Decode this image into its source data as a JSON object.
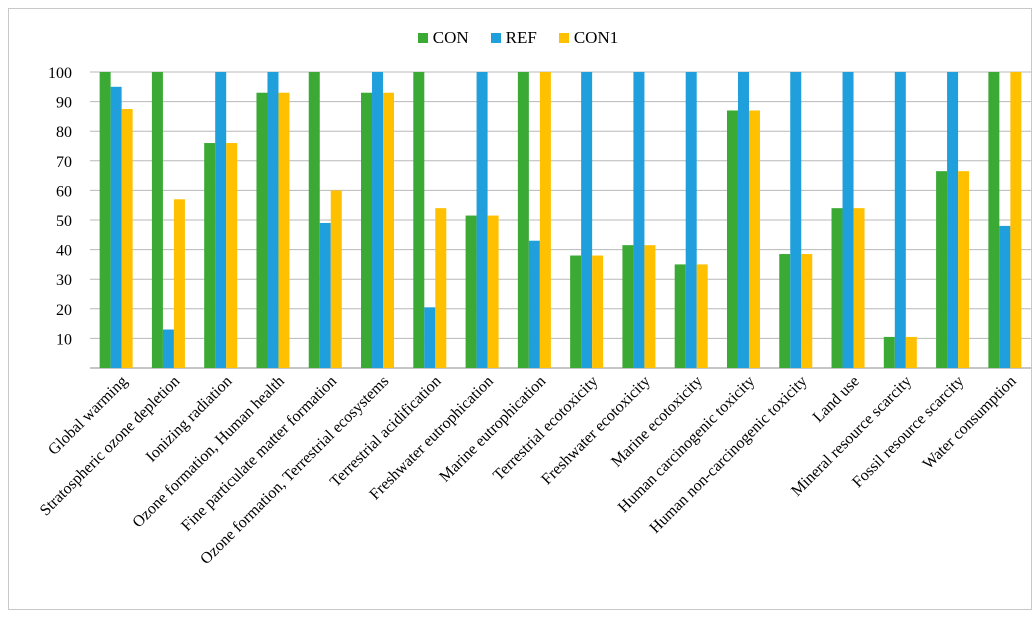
{
  "chart_data": {
    "type": "bar",
    "title": "",
    "xlabel": "",
    "ylabel": "",
    "ylim": [
      0,
      100
    ],
    "yticks": [
      10,
      20,
      30,
      40,
      50,
      60,
      70,
      80,
      90,
      100
    ],
    "grid": true,
    "legend_position": "top-center",
    "categories": [
      "Global warming",
      "Stratospheric ozone depletion",
      "Ionizing radiation",
      "Ozone formation, Human health",
      "Fine particulate matter formation",
      "Ozone formation, Terrestrial ecosystems",
      "Terrestrial acidification",
      "Freshwater eutrophication",
      "Marine eutrophication",
      "Terrestrial ecotoxicity",
      "Freshwater ecotoxicity",
      "Marine ecotoxicity",
      "Human carcinogenic toxicity",
      "Human non-carcinogenic toxicity",
      "Land use",
      "Mineral resource scarcity",
      "Fossil resource scarcity",
      "Water consumption"
    ],
    "series": [
      {
        "name": "CON",
        "color": "#3aaa35",
        "values": [
          100,
          100,
          76,
          93,
          100,
          93,
          100,
          51.5,
          100,
          38,
          41.5,
          35,
          87,
          38.5,
          54,
          10.5,
          66.5,
          100
        ]
      },
      {
        "name": "REF",
        "color": "#1f9fdb",
        "values": [
          95,
          13,
          100,
          100,
          49,
          100,
          20.5,
          100,
          43,
          100,
          100,
          100,
          100,
          100,
          100,
          100,
          100,
          48
        ]
      },
      {
        "name": "CON1",
        "color": "#ffc000",
        "values": [
          87.5,
          57,
          76,
          93,
          60,
          93,
          54,
          51.5,
          100,
          38,
          41.5,
          35,
          87,
          38.5,
          54,
          10.5,
          66.5,
          100
        ]
      }
    ]
  }
}
